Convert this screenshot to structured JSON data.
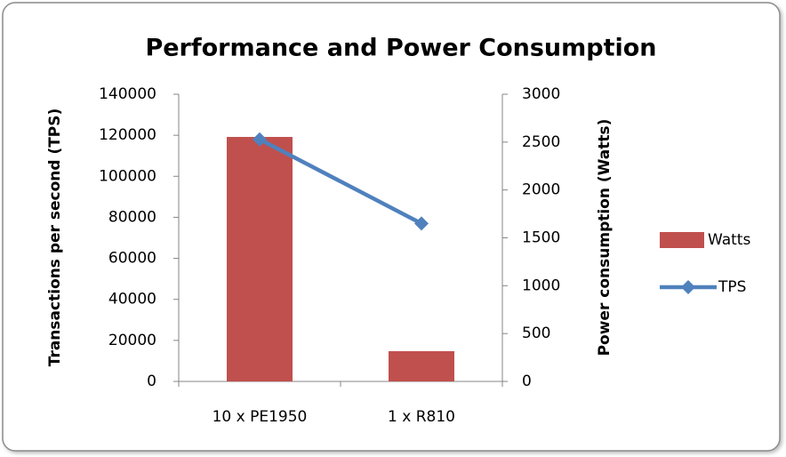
{
  "chart_data": {
    "type": "bar_line",
    "title": "Performance and Power Consumption",
    "categories": [
      "10 x PE1950",
      "1 x R810"
    ],
    "ylabel": "Transactions per second (TPS)",
    "y2label": "Power consumption (Watts)",
    "ylim": [
      0,
      140000
    ],
    "yticks": [
      0,
      20000,
      40000,
      60000,
      80000,
      100000,
      120000,
      140000
    ],
    "y2lim": [
      0,
      3000
    ],
    "y2ticks": [
      0,
      500,
      1000,
      1500,
      2000,
      2500,
      3000
    ],
    "series": [
      {
        "name": "Watts",
        "type": "bar",
        "axis": "y2",
        "color": "#c0504d",
        "values": [
          2554,
          316
        ]
      },
      {
        "name": "TPS",
        "type": "line",
        "axis": "y",
        "color": "#4f81bd",
        "values": [
          118000,
          77000
        ]
      }
    ]
  }
}
